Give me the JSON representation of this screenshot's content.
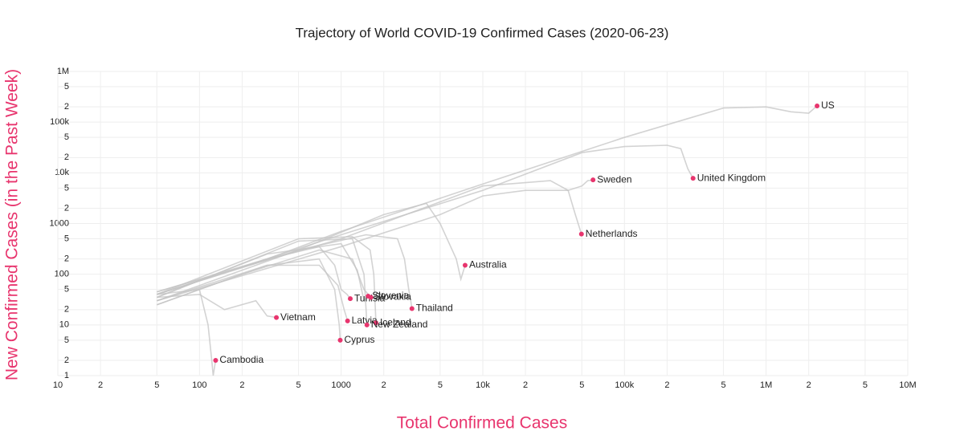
{
  "chart_data": {
    "type": "line",
    "title": "Trajectory of World COVID-19 Confirmed Cases (2020-06-23)",
    "x_label": "Total Confirmed Cases",
    "y_label": "New Confirmed Cases (in the Past Week)",
    "log_x": true,
    "log_y": true,
    "grid": true,
    "line_color": "#c4c4c4",
    "point_color": "#e8356e",
    "axis_title_color": "#e8356e",
    "xlim": [
      10,
      10000000
    ],
    "xticks": [
      10,
      {
        "value": 20,
        "label": "2"
      },
      {
        "value": 50,
        "label": "5"
      },
      100,
      {
        "value": 200,
        "label": "2"
      },
      {
        "value": 500,
        "label": "5"
      },
      1000,
      {
        "value": 2000,
        "label": "2"
      },
      {
        "value": 5000,
        "label": "5"
      },
      {
        "value": 10000,
        "label": "10k"
      },
      {
        "value": 20000,
        "label": "2"
      },
      {
        "value": 50000,
        "label": "5"
      },
      {
        "value": 100000,
        "label": "100k"
      },
      {
        "value": 200000,
        "label": "2"
      },
      {
        "value": 500000,
        "label": "5"
      },
      {
        "value": 1000000,
        "label": "1M"
      },
      {
        "value": 2000000,
        "label": "2"
      },
      {
        "value": 5000000,
        "label": "5"
      },
      {
        "value": 10000000,
        "label": "10M"
      }
    ],
    "ylim": [
      1,
      1000000
    ],
    "yticks": [
      1,
      2,
      5,
      10,
      {
        "value": 20,
        "label": "2"
      },
      {
        "value": 50,
        "label": "5"
      },
      100,
      {
        "value": 200,
        "label": "2"
      },
      {
        "value": 500,
        "label": "5"
      },
      1000,
      {
        "value": 2000,
        "label": "2"
      },
      {
        "value": 5000,
        "label": "5"
      },
      {
        "value": 10000,
        "label": "10k"
      },
      {
        "value": 20000,
        "label": "2"
      },
      {
        "value": 50000,
        "label": "5"
      },
      {
        "value": 100000,
        "label": "100k"
      },
      {
        "value": 200000,
        "label": "2"
      },
      {
        "value": 500000,
        "label": "5"
      },
      {
        "value": 1000000,
        "label": "1M"
      }
    ],
    "series": [
      {
        "name": "US",
        "x": [
          50,
          300,
          1000,
          10000,
          100000,
          500000,
          1000000,
          1500000,
          2000000,
          2290000
        ],
        "values": [
          45,
          200,
          700,
          6000,
          50000,
          190000,
          200000,
          160000,
          150000,
          209000
        ]
      },
      {
        "name": "United Kingdom",
        "x": [
          50,
          1000,
          10000,
          50000,
          100000,
          200000,
          250000,
          280000,
          305000
        ],
        "values": [
          40,
          600,
          4500,
          25000,
          33000,
          35000,
          30000,
          12000,
          7800
        ]
      },
      {
        "name": "Sweden",
        "x": [
          50,
          1000,
          5000,
          10000,
          20000,
          40000,
          50000,
          55000,
          60000
        ],
        "values": [
          30,
          350,
          1500,
          3500,
          4500,
          4500,
          5500,
          7000,
          7250
        ]
      },
      {
        "name": "Netherlands",
        "x": [
          50,
          1000,
          10000,
          30000,
          40000,
          45000,
          49700
        ],
        "values": [
          45,
          500,
          5500,
          7000,
          4500,
          1500,
          620
        ]
      },
      {
        "name": "Australia",
        "x": [
          50,
          500,
          2000,
          4000,
          5000,
          6500,
          7000,
          7500
        ],
        "values": [
          40,
          300,
          1500,
          2500,
          1000,
          200,
          80,
          150
        ]
      },
      {
        "name": "Thailand",
        "x": [
          50,
          500,
          1500,
          2500,
          2800,
          3000,
          3100,
          3160
        ],
        "values": [
          30,
          300,
          600,
          500,
          200,
          50,
          30,
          21
        ]
      },
      {
        "name": "Tunisia",
        "x": [
          50,
          300,
          700,
          900,
          1000,
          1100,
          1160
        ],
        "values": [
          40,
          200,
          350,
          150,
          50,
          40,
          33
        ]
      },
      {
        "name": "Slovenia",
        "x": [
          50,
          300,
          1000,
          1300,
          1450,
          1550
        ],
        "values": [
          35,
          250,
          400,
          120,
          30,
          37
        ]
      },
      {
        "name": "Slovakia",
        "x": [
          50,
          200,
          700,
          1200,
          1450,
          1620
        ],
        "values": [
          25,
          100,
          300,
          200,
          50,
          35
        ]
      },
      {
        "name": "Latvia",
        "x": [
          50,
          300,
          700,
          950,
          1050,
          1110
        ],
        "values": [
          25,
          150,
          150,
          60,
          20,
          12
        ]
      },
      {
        "name": "Iceland",
        "x": [
          50,
          500,
          1200,
          1600,
          1700,
          1760
        ],
        "values": [
          40,
          500,
          550,
          300,
          100,
          11
        ]
      },
      {
        "name": "New Zealand",
        "x": [
          50,
          500,
          1200,
          1450,
          1500,
          1520
        ],
        "values": [
          35,
          450,
          500,
          100,
          20,
          10
        ]
      },
      {
        "name": "Cyprus",
        "x": [
          50,
          300,
          700,
          900,
          970,
          985
        ],
        "values": [
          30,
          150,
          200,
          50,
          10,
          5
        ]
      },
      {
        "name": "Vietnam",
        "x": [
          50,
          100,
          150,
          250,
          300,
          349
        ],
        "values": [
          35,
          40,
          20,
          30,
          15,
          14
        ]
      },
      {
        "name": "Cambodia",
        "x": [
          50,
          100,
          115,
          122,
          125,
          130
        ],
        "values": [
          40,
          50,
          10,
          2,
          1,
          2
        ]
      }
    ]
  }
}
